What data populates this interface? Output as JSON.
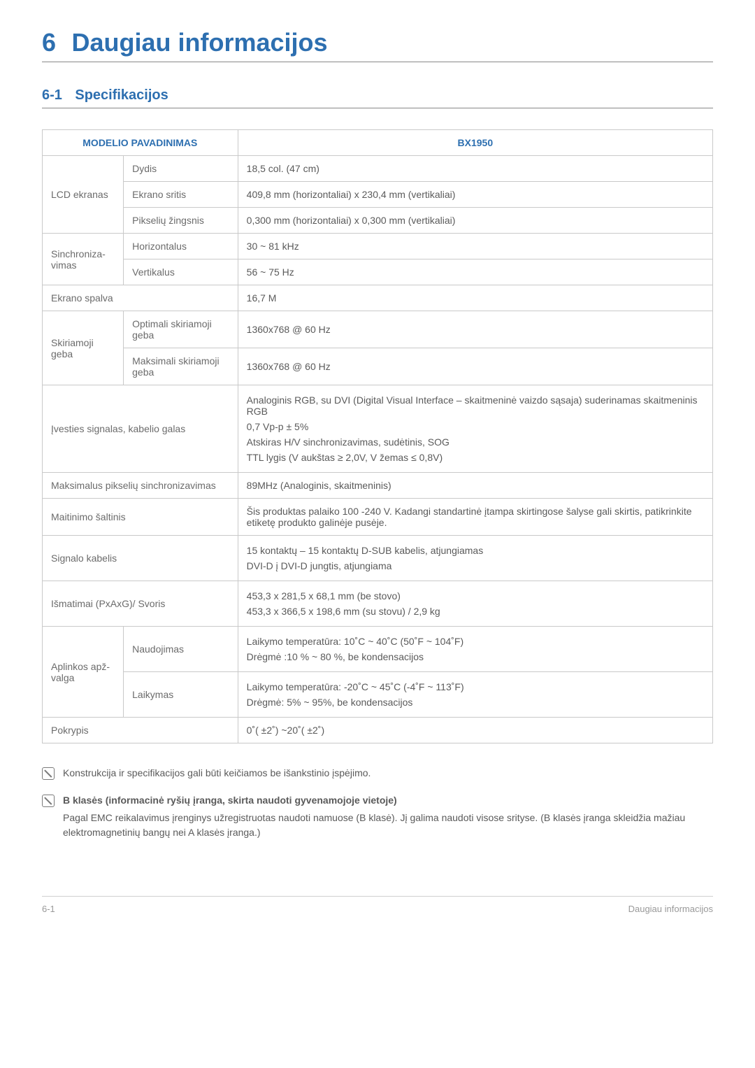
{
  "chapter": {
    "num": "6",
    "text": "Daugiau informacijos",
    "num_color": "#2d6fb0",
    "text_color": "#2d6fb0"
  },
  "section": {
    "num": "6-1",
    "text": "Specifikacijos",
    "num_color": "#2d6fb0",
    "text_color": "#2d6fb0"
  },
  "table": {
    "header_left": "MODELIO PAVADINIMAS",
    "header_right": "BX1950",
    "rows": [
      {
        "group": "LCD ekranas",
        "group_rowspan": 3,
        "label": "Dydis",
        "value": "18,5 col. (47 cm)"
      },
      {
        "label": "Ekrano sritis",
        "value": "409,8 mm (horizontaliai) x 230,4 mm (vertikaliai)"
      },
      {
        "label": "Pikselių žingsnis",
        "value": "0,300 mm (horizontaliai) x 0,300 mm (vertikaliai)"
      },
      {
        "group": "Sinchroniza-vimas",
        "group_rowspan": 2,
        "label": "Horizontalus",
        "value": "30 ~ 81 kHz"
      },
      {
        "label": "Vertikalus",
        "value": "56 ~ 75 Hz"
      },
      {
        "full_label": "Ekrano spalva",
        "value": "16,7 M"
      },
      {
        "group": "Skiriamoji geba",
        "group_rowspan": 2,
        "label": "Optimali skiriamoji geba",
        "value": "1360x768 @ 60 Hz"
      },
      {
        "label": "Maksimali skiriamoji geba",
        "value": "1360x768 @ 60 Hz"
      },
      {
        "full_label": "Įvesties signalas, kabelio galas",
        "value_lines": [
          "Analoginis RGB, su DVI (Digital Visual Interface – skaitmeninė vaizdo sąsaja) suderinamas skaitmeninis RGB",
          "0,7 Vp-p ± 5%",
          "Atskiras H/V sinchronizavimas, sudėtinis, SOG",
          "TTL lygis (V aukštas ≥ 2,0V, V žemas ≤ 0,8V)"
        ]
      },
      {
        "full_label": "Maksimalus pikselių sinchronizavimas",
        "value": "89MHz (Analoginis, skaitmeninis)"
      },
      {
        "full_label": "Maitinimo šaltinis",
        "value": "Šis produktas palaiko 100 -240 V. Kadangi standartinė įtampa skirtingose šalyse gali skirtis, patikrinkite etiketę produkto galinėje pusėje."
      },
      {
        "full_label": "Signalo kabelis",
        "value_lines": [
          "15 kontaktų – 15 kontaktų D-SUB kabelis, atjungiamas",
          "DVI-D į DVI-D jungtis, atjungiama"
        ]
      },
      {
        "full_label": "Išmatimai (PxAxG)/ Svoris",
        "value_lines": [
          "453,3 x 281,5 x 68,1 mm (be stovo)",
          "453,3 x 366,5 x 198,6 mm (su stovu) / 2,9 kg"
        ]
      },
      {
        "group": "Aplinkos apž-valga",
        "group_rowspan": 2,
        "label": "Naudojimas",
        "value_lines": [
          "Laikymo temperatūra: 10˚C ~ 40˚C (50˚F ~ 104˚F)",
          "Drėgmė :10 % ~ 80 %, be kondensacijos"
        ]
      },
      {
        "label": "Laikymas",
        "value_lines": [
          "Laikymo temperatūra: -20˚C ~ 45˚C (-4˚F ~ 113˚F)",
          "Drėgmė: 5% ~ 95%, be kondensacijos"
        ]
      },
      {
        "full_label": "Pokrypis",
        "value": "0˚( ±2˚) ~20˚( ±2˚)"
      }
    ]
  },
  "notes": [
    {
      "title": "",
      "body": "Konstrukcija ir specifikacijos gali būti keičiamos be išankstinio įspėjimo."
    },
    {
      "title": "B klasės (informacinė ryšių įranga, skirta naudoti gyvenamojoje vietoje)",
      "body": "Pagal EMC reikalavimus įrenginys užregistruotas naudoti namuose (B klasė). Jį galima naudoti visose srityse. (B klasės įranga skleidžia mažiau elektromagnetinių bangų nei A klasės įranga.)"
    }
  ],
  "footer": {
    "left": "6-1",
    "right": "Daugiau informacijos"
  },
  "colors": {
    "heading": "#2d6fb0",
    "border": "#c9c9c9",
    "text": "#5a5a5a",
    "muted": "#999999"
  }
}
